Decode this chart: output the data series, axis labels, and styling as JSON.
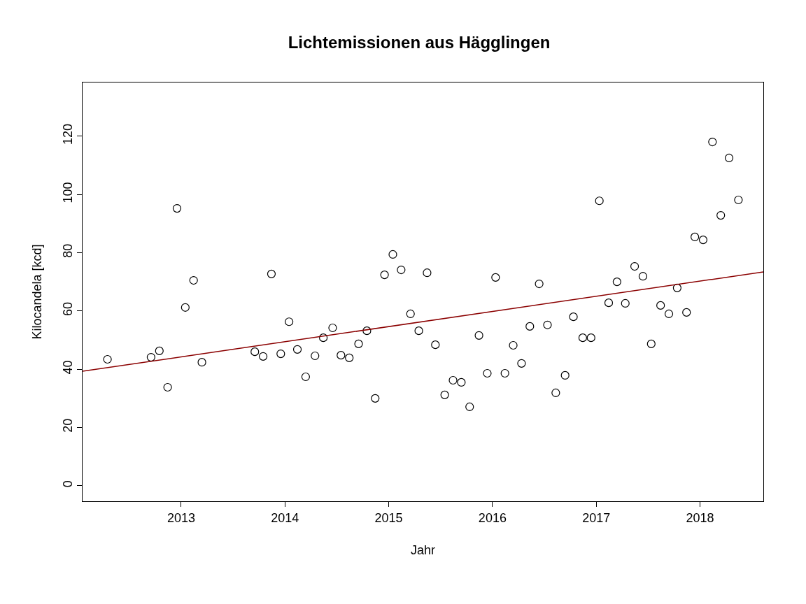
{
  "chart_data": {
    "type": "scatter",
    "title": "Lichtemissionen aus Hägglingen",
    "xlabel": "Jahr",
    "ylabel": "Kilocandela [kcd]",
    "xlim": [
      2012.05,
      2018.61
    ],
    "xticks": [
      2013,
      2014,
      2015,
      2016,
      2017,
      2018
    ],
    "ylim": [
      -5.3,
      138.4
    ],
    "yticks": [
      0,
      20,
      40,
      60,
      80,
      100,
      120
    ],
    "grid": false,
    "marker": "circle",
    "series": [
      {
        "color": "#000000",
        "x": [
          2012.29,
          2012.71,
          2012.79,
          2012.87,
          2012.96,
          2013.04,
          2013.12,
          2013.2,
          2013.71,
          2013.79,
          2013.87,
          2013.96,
          2014.04,
          2014.12,
          2014.2,
          2014.29,
          2014.37,
          2014.46,
          2014.54,
          2014.62,
          2014.71,
          2014.79,
          2014.87,
          2014.96,
          2015.04,
          2015.12,
          2015.21,
          2015.29,
          2015.37,
          2015.45,
          2015.54,
          2015.62,
          2015.7,
          2015.78,
          2015.87,
          2015.95,
          2016.03,
          2016.12,
          2016.2,
          2016.28,
          2016.36,
          2016.45,
          2016.53,
          2016.61,
          2016.7,
          2016.78,
          2016.87,
          2016.95,
          2017.03,
          2017.12,
          2017.2,
          2017.28,
          2017.37,
          2017.45,
          2017.53,
          2017.62,
          2017.7,
          2017.78,
          2017.87,
          2017.95,
          2018.03,
          2018.12,
          2018.2,
          2018.28,
          2018.37
        ],
        "values": [
          43.4,
          44.1,
          46.3,
          33.8,
          95.2,
          61.2,
          70.5,
          42.4,
          46.0,
          44.4,
          72.7,
          45.3,
          56.3,
          46.8,
          37.4,
          44.6,
          50.8,
          54.2,
          44.8,
          43.9,
          48.7,
          53.2,
          30.0,
          72.4,
          79.4,
          74.1,
          59.0,
          53.2,
          73.1,
          48.4,
          31.2,
          36.2,
          35.5,
          27.1,
          51.6,
          38.6,
          71.5,
          38.6,
          48.2,
          42.0,
          54.7,
          69.3,
          55.2,
          31.9,
          37.9,
          58.0,
          50.8,
          50.8,
          97.8,
          62.8,
          70.0,
          62.6,
          75.3,
          71.9,
          48.7,
          61.9,
          59.0,
          67.9,
          59.5,
          85.4,
          84.4,
          118.0,
          92.8,
          112.5,
          98.1
        ]
      },
      {
        "type": "line",
        "marker": "none",
        "color": "#8b0000",
        "x": [
          2012.05,
          2018.61
        ],
        "values": [
          39.3,
          73.4
        ]
      }
    ]
  }
}
